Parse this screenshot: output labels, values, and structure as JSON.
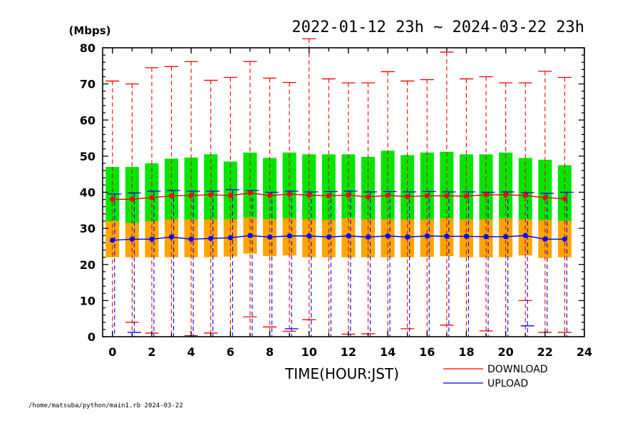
{
  "chart_data": {
    "type": "box",
    "title": "2022-01-12 23h ~ 2024-03-22 23h",
    "ylabel": "(Mbps)",
    "xlabel": "TIME(HOUR:JST)",
    "xlim": [
      -0.5,
      24
    ],
    "ylim": [
      0,
      80
    ],
    "xticks": [
      0,
      2,
      4,
      6,
      8,
      10,
      12,
      14,
      16,
      18,
      20,
      22,
      24
    ],
    "yticks": [
      0,
      10,
      20,
      30,
      40,
      50,
      60,
      70,
      80
    ],
    "legend_position": "bottom-right",
    "footer": "/home/matsuba/python/main1.rb  2024-03-22",
    "x": [
      0,
      1,
      2,
      3,
      4,
      5,
      6,
      7,
      8,
      9,
      10,
      11,
      12,
      13,
      14,
      15,
      16,
      17,
      18,
      19,
      20,
      21,
      22,
      23
    ],
    "series": [
      {
        "name": "DOWNLOAD",
        "line_color": "#ff0000",
        "box_color": "#00e600",
        "min": [
          0,
          0,
          0,
          0,
          0,
          0,
          0,
          0,
          0,
          0,
          0,
          0,
          0,
          0,
          0,
          0,
          0,
          0,
          0,
          0,
          0,
          0,
          0,
          0
        ],
        "q1": [
          30.5,
          30.5,
          30.5,
          30.5,
          30.5,
          30.5,
          30.5,
          30.5,
          30.5,
          30.5,
          30.5,
          30.5,
          30.5,
          30.5,
          30.5,
          30.5,
          30.5,
          30.5,
          30.5,
          30.5,
          30.5,
          30.5,
          30.5,
          30.5
        ],
        "q3": [
          47,
          47,
          48,
          49.3,
          49.6,
          50.5,
          48.5,
          51,
          49.5,
          51,
          50.5,
          50.5,
          50.5,
          49.8,
          51.5,
          50.3,
          51,
          51.2,
          50.5,
          50.5,
          51,
          49.5,
          49,
          47.5
        ],
        "max": [
          70.8,
          70,
          74.5,
          74.8,
          76.2,
          71,
          71.8,
          76.2,
          71.6,
          70.4,
          82.5,
          71.4,
          70.3,
          70.3,
          73.4,
          70.8,
          71.2,
          78.8,
          71.4,
          72,
          70.3,
          70.3,
          73.5,
          71.8
        ],
        "caps_low": [
          null,
          4,
          1,
          null,
          0.3,
          1,
          null,
          5.5,
          2.7,
          1.5,
          4.7,
          null,
          0.7,
          0.8,
          null,
          2.2,
          null,
          3.2,
          null,
          1.6,
          null,
          10,
          1.2,
          1.2
        ],
        "mean": [
          38,
          38.1,
          38.5,
          39,
          39.1,
          39.3,
          39.1,
          39.8,
          39.1,
          39.5,
          39.2,
          39,
          39.2,
          38.7,
          39.1,
          38.8,
          39,
          39,
          38.9,
          39.3,
          39.3,
          39.1,
          38.5,
          38.2
        ]
      },
      {
        "name": "UPLOAD",
        "line_color": "#0000ff",
        "box_color": "#ffa500",
        "min": [
          0,
          0,
          0,
          0,
          0,
          0,
          0,
          0,
          0,
          0,
          0,
          0,
          0,
          0,
          0,
          0,
          0,
          0,
          0,
          0,
          0,
          0,
          0,
          0
        ],
        "q1": [
          22,
          22,
          22,
          22,
          22,
          22,
          22.2,
          23,
          22.3,
          22.5,
          22,
          22,
          22,
          22,
          22,
          22,
          22.1,
          22.3,
          22,
          22,
          22,
          22.5,
          21.8,
          22
        ],
        "q3": [
          32,
          31.5,
          32,
          32.5,
          32.5,
          32.5,
          32.5,
          33,
          32.5,
          32.8,
          32.5,
          32.3,
          32.8,
          32.5,
          32.5,
          32.5,
          32.5,
          32.8,
          32.5,
          32.5,
          32.8,
          32.5,
          32.3,
          32.1
        ],
        "max": [
          39.5,
          39.8,
          40.3,
          40.5,
          40.3,
          40.3,
          40.7,
          40.5,
          40,
          40.3,
          40.1,
          40.2,
          40.3,
          40.1,
          40.2,
          40.1,
          40.2,
          40.1,
          40.1,
          40,
          40.1,
          39.9,
          39.7,
          40
        ],
        "caps_low": [
          0,
          1.2,
          0,
          0,
          0,
          0,
          0,
          0,
          0,
          2.2,
          0,
          0,
          0,
          0,
          0,
          0,
          0,
          0,
          0,
          0,
          0,
          3,
          0,
          0
        ],
        "mean": [
          26.7,
          27,
          27,
          27.6,
          27,
          27.2,
          27.4,
          28,
          27.6,
          27.9,
          27.9,
          27.6,
          27.9,
          27.6,
          27.9,
          27.6,
          27.9,
          27.8,
          27.8,
          27.7,
          27.7,
          28,
          27,
          27
        ]
      }
    ]
  }
}
